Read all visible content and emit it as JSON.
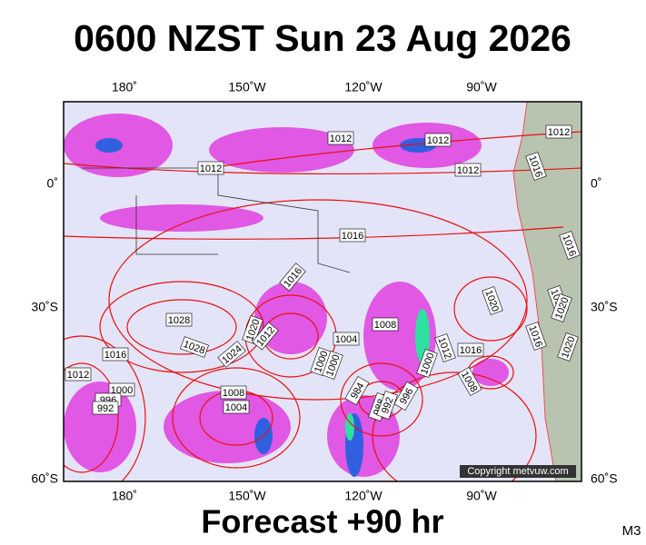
{
  "title": "0600 NZST Sun 23 Aug 2026",
  "footer": "Forecast +90 hr",
  "model": "M3",
  "copyright": "Copyright metvuw.com",
  "lon_labels": [
    "180˚",
    "150˚W",
    "120˚W",
    "90˚W"
  ],
  "lat_labels": [
    "0˚",
    "30˚S",
    "60˚S"
  ],
  "isobar_labels": [
    "1012",
    "1012",
    "1012",
    "1012",
    "1012",
    "1016",
    "1016",
    "1016",
    "1028",
    "1028",
    "1016",
    "1012",
    "1000",
    "996",
    "992",
    "1024",
    "1020",
    "1012",
    "1008",
    "1004",
    "1000",
    "1000",
    "1008",
    "1004",
    "984",
    "988",
    "992",
    "996",
    "1000",
    "1012",
    "1016",
    "1008",
    "1020",
    "1016",
    "1016",
    "1016",
    "1020",
    "1020"
  ]
}
